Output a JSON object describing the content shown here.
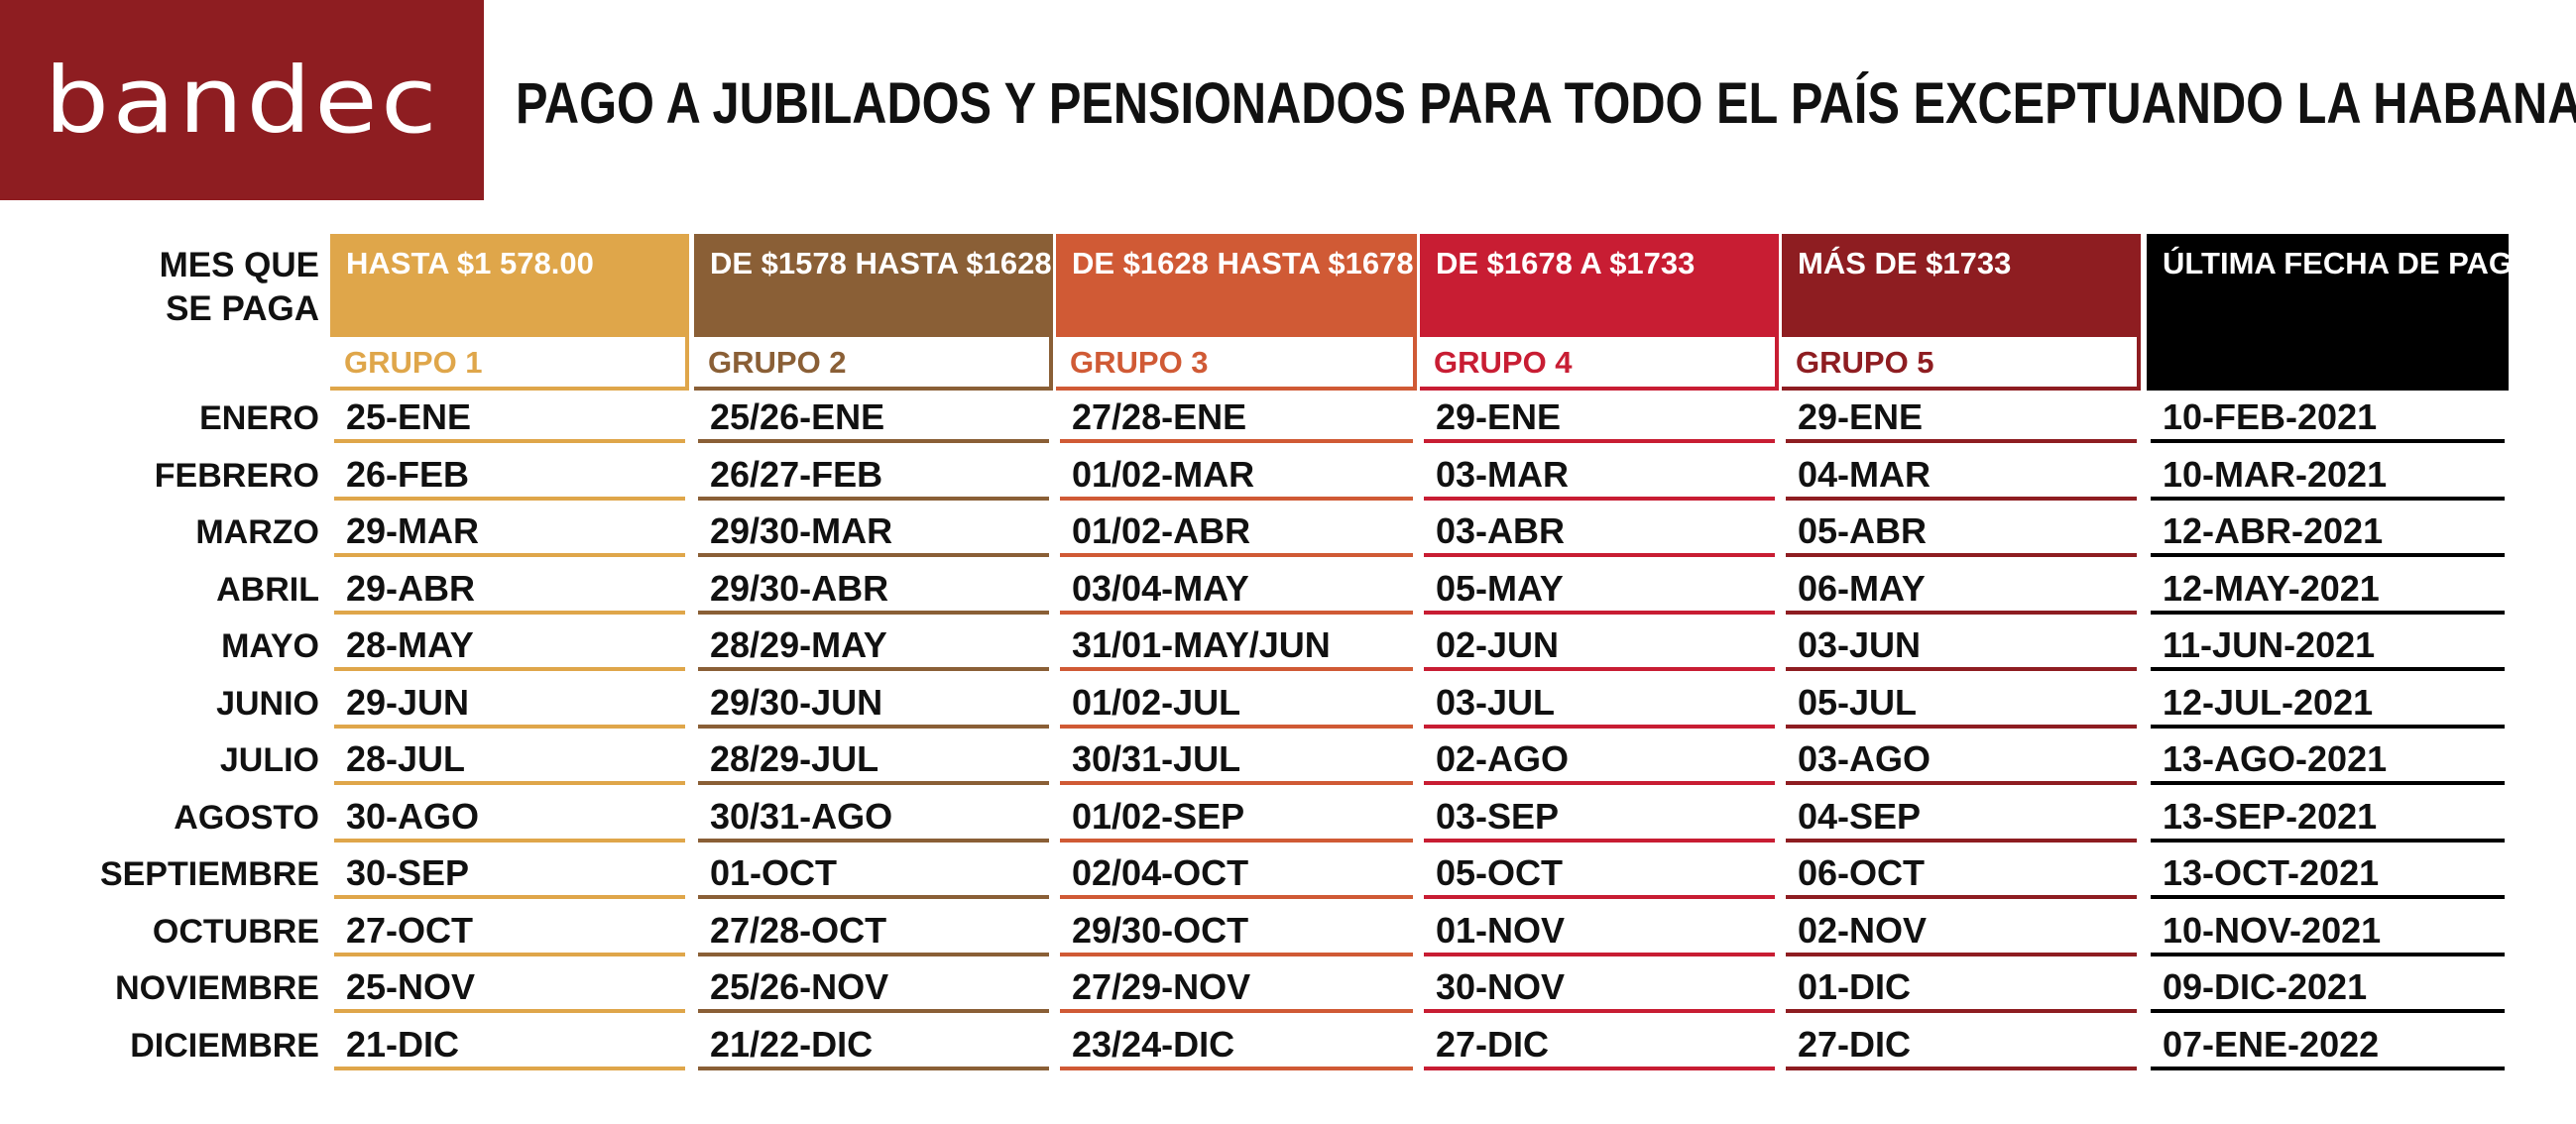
{
  "logo": {
    "text": "bandec"
  },
  "title": "PAGO A JUBILADOS Y PENSIONADOS PARA TODO EL PAÍS EXCEPTUANDO LA HABANA",
  "row_header": "MES QUE SE PAGA",
  "colors": {
    "logo_bg": "#8e1d21",
    "group_1": "#dfa64a",
    "group_2": "#8a5f36",
    "group_3": "#d05a35",
    "group_4": "#c81d33",
    "group_5": "#8e1d21",
    "last": "#000000"
  },
  "groups": [
    {
      "range": "HASTA $1 578.00",
      "name": "GRUPO 1"
    },
    {
      "range": "DE $1578 HASTA $1628",
      "name": "GRUPO 2"
    },
    {
      "range": "DE $1628 HASTA $1678",
      "name": "GRUPO 3"
    },
    {
      "range": "DE $1678 A $1733",
      "name": "GRUPO 4"
    },
    {
      "range": "MÁS DE $1733",
      "name": "GRUPO 5"
    }
  ],
  "last_payment_header": "ÚLTIMA FECHA DE PAGO",
  "rows": [
    {
      "month": "ENERO",
      "g1": "25-ENE",
      "g2": "25/26-ENE",
      "g3": "27/28-ENE",
      "g4": "29-ENE",
      "g5": "29-ENE",
      "last": "10-FEB-2021"
    },
    {
      "month": "FEBRERO",
      "g1": "26-FEB",
      "g2": "26/27-FEB",
      "g3": "01/02-MAR",
      "g4": "03-MAR",
      "g5": "04-MAR",
      "last": "10-MAR-2021"
    },
    {
      "month": "MARZO",
      "g1": "29-MAR",
      "g2": "29/30-MAR",
      "g3": "01/02-ABR",
      "g4": "03-ABR",
      "g5": "05-ABR",
      "last": "12-ABR-2021"
    },
    {
      "month": "ABRIL",
      "g1": "29-ABR",
      "g2": "29/30-ABR",
      "g3": "03/04-MAY",
      "g4": "05-MAY",
      "g5": "06-MAY",
      "last": "12-MAY-2021"
    },
    {
      "month": "MAYO",
      "g1": "28-MAY",
      "g2": "28/29-MAY",
      "g3": "31/01-MAY/JUN",
      "g4": "02-JUN",
      "g5": "03-JUN",
      "last": "11-JUN-2021"
    },
    {
      "month": "JUNIO",
      "g1": "29-JUN",
      "g2": "29/30-JUN",
      "g3": "01/02-JUL",
      "g4": "03-JUL",
      "g5": "05-JUL",
      "last": "12-JUL-2021"
    },
    {
      "month": "JULIO",
      "g1": "28-JUL",
      "g2": "28/29-JUL",
      "g3": "30/31-JUL",
      "g4": "02-AGO",
      "g5": "03-AGO",
      "last": "13-AGO-2021"
    },
    {
      "month": "AGOSTO",
      "g1": "30-AGO",
      "g2": "30/31-AGO",
      "g3": "01/02-SEP",
      "g4": "03-SEP",
      "g5": "04-SEP",
      "last": "13-SEP-2021"
    },
    {
      "month": "SEPTIEMBRE",
      "g1": "30-SEP",
      "g2": "01-OCT",
      "g3": "02/04-OCT",
      "g4": "05-OCT",
      "g5": "06-OCT",
      "last": "13-OCT-2021"
    },
    {
      "month": "OCTUBRE",
      "g1": "27-OCT",
      "g2": "27/28-OCT",
      "g3": "29/30-OCT",
      "g4": "01-NOV",
      "g5": "02-NOV",
      "last": "10-NOV-2021"
    },
    {
      "month": "NOVIEMBRE",
      "g1": "25-NOV",
      "g2": "25/26-NOV",
      "g3": "27/29-NOV",
      "g4": "30-NOV",
      "g5": "01-DIC",
      "last": "09-DIC-2021"
    },
    {
      "month": "DICIEMBRE",
      "g1": "21-DIC",
      "g2": "21/22-DIC",
      "g3": "23/24-DIC",
      "g4": "27-DIC",
      "g5": "27-DIC",
      "last": "07-ENE-2022"
    }
  ]
}
